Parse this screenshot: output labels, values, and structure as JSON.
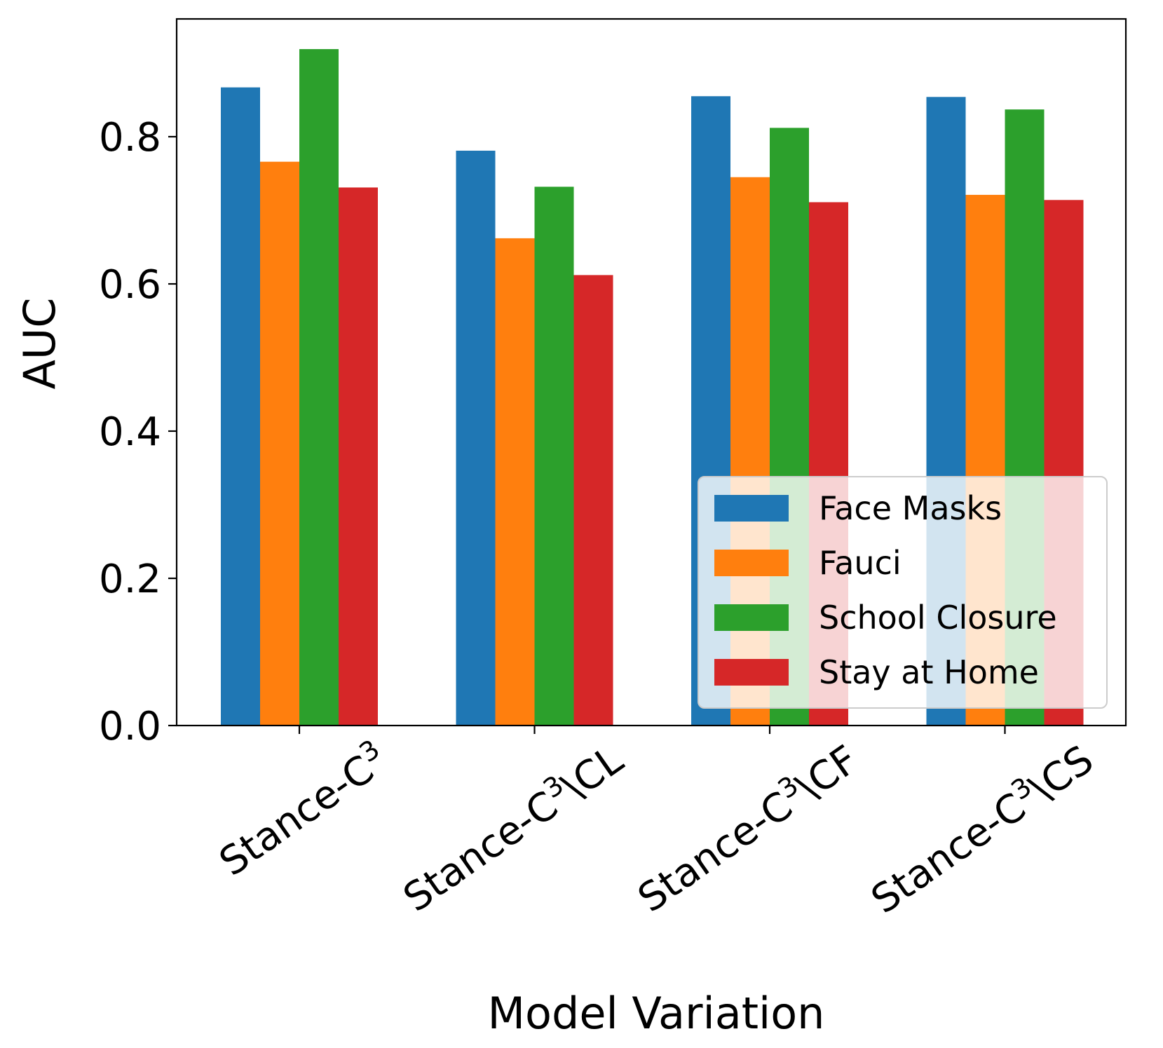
{
  "chart_data": {
    "type": "bar",
    "title": "",
    "xlabel": "Model Variation",
    "ylabel": "AUC",
    "ylim": [
      0,
      0.96
    ],
    "yticks": [
      0.0,
      0.2,
      0.4,
      0.6,
      0.8
    ],
    "ytick_labels": [
      "0.0",
      "0.2",
      "0.4",
      "0.6",
      "0.8"
    ],
    "categories": [
      {
        "base": "Stance-C",
        "sup": "3",
        "suffix": ""
      },
      {
        "base": "Stance-C",
        "sup": "3",
        "suffix": "\\CL"
      },
      {
        "base": "Stance-C",
        "sup": "3",
        "suffix": "\\CF"
      },
      {
        "base": "Stance-C",
        "sup": "3",
        "suffix": "\\CS"
      }
    ],
    "series": [
      {
        "name": "Face Masks",
        "color": "#1f77b4",
        "values": [
          0.867,
          0.781,
          0.855,
          0.854
        ]
      },
      {
        "name": "Fauci",
        "color": "#ff7f0e",
        "values": [
          0.766,
          0.662,
          0.745,
          0.721
        ]
      },
      {
        "name": "School Closure",
        "color": "#2ca02c",
        "values": [
          0.919,
          0.732,
          0.812,
          0.837
        ]
      },
      {
        "name": "Stay at Home",
        "color": "#d62728",
        "values": [
          0.731,
          0.612,
          0.711,
          0.714
        ]
      }
    ],
    "legend_position": "lower-right",
    "grid": false
  }
}
